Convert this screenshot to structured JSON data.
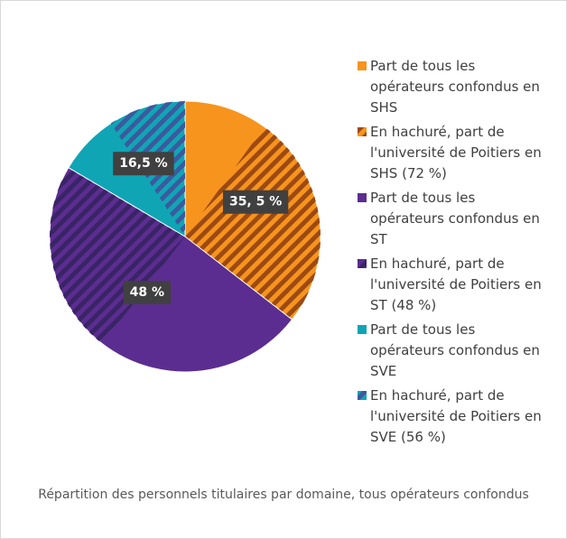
{
  "chart_data": {
    "type": "pie",
    "title": "Répartition des personnels titulaires par domaine, tous opérateurs confondus",
    "categories": [
      "Part de tous les opérateurs confondus en SHS",
      "Part de tous les opérateurs confondus en ST",
      "Part de tous les opérateurs confondus en SVE"
    ],
    "values": [
      35.5,
      48,
      16.5
    ],
    "value_labels": [
      "35, 5 %",
      "48 %",
      "16,5 %"
    ],
    "colors": [
      "#f7941d",
      "#5b2d90",
      "#10a5b5"
    ],
    "hatch": {
      "names": [
        "En hachuré, part de l'université de Poitiers en SHS (72 %)",
        "En hachuré, part de l'université de Poitiers en ST (48 %)",
        "En hachuré, part de l'université de Poitiers en SVE (56 %)"
      ],
      "values": [
        72,
        48,
        56
      ],
      "colors": [
        "#9c4a12",
        "#3a2466",
        "#3c5a9e"
      ]
    }
  }
}
